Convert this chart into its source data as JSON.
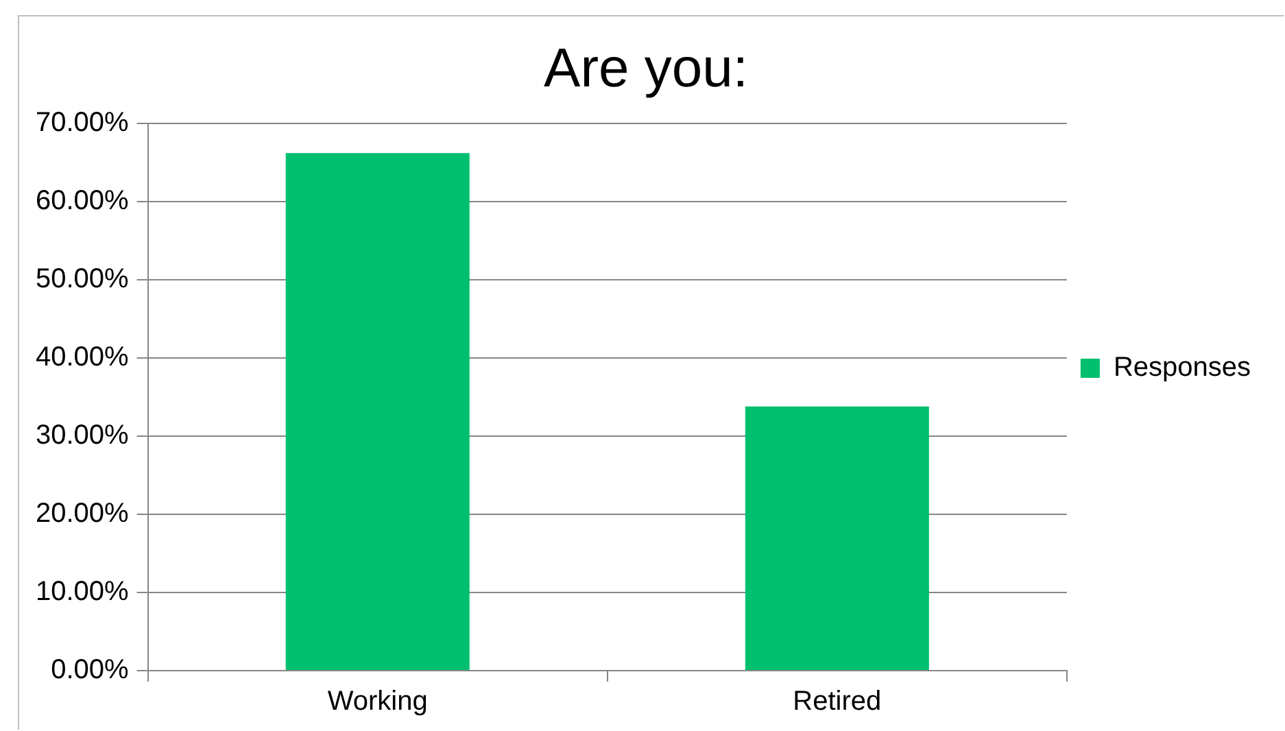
{
  "chart_data": {
    "type": "bar",
    "title": "Are you:",
    "categories": [
      "Working",
      "Retired"
    ],
    "series": [
      {
        "name": "Responses",
        "color": "#00bf6f",
        "values": [
          66.2,
          33.8
        ]
      }
    ],
    "ylim": [
      0,
      70
    ],
    "yticks": [
      {
        "value": 0,
        "label": "0.00%"
      },
      {
        "value": 10,
        "label": "10.00%"
      },
      {
        "value": 20,
        "label": "20.00%"
      },
      {
        "value": 30,
        "label": "30.00%"
      },
      {
        "value": 40,
        "label": "40.00%"
      },
      {
        "value": 50,
        "label": "50.00%"
      },
      {
        "value": 60,
        "label": "60.00%"
      },
      {
        "value": 70,
        "label": "70.00%"
      }
    ],
    "grid": "y",
    "legend": "right"
  }
}
